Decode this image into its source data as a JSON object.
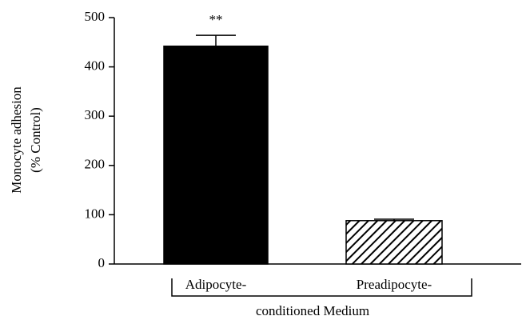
{
  "chart_data": {
    "type": "bar",
    "y_label": [
      "Monocyte adhesion",
      "(% Control)"
    ],
    "x_label": "conditioned Medium",
    "categories": [
      "Adipocyte-",
      "Preadipocyte-"
    ],
    "values": [
      442,
      88
    ],
    "errors": [
      22,
      3
    ],
    "fills": [
      "solid",
      "hatch"
    ],
    "color": "#000000",
    "annotation": "**",
    "ylim": [
      0,
      500
    ],
    "yticks": [
      0,
      100,
      200,
      300,
      400,
      500
    ]
  }
}
